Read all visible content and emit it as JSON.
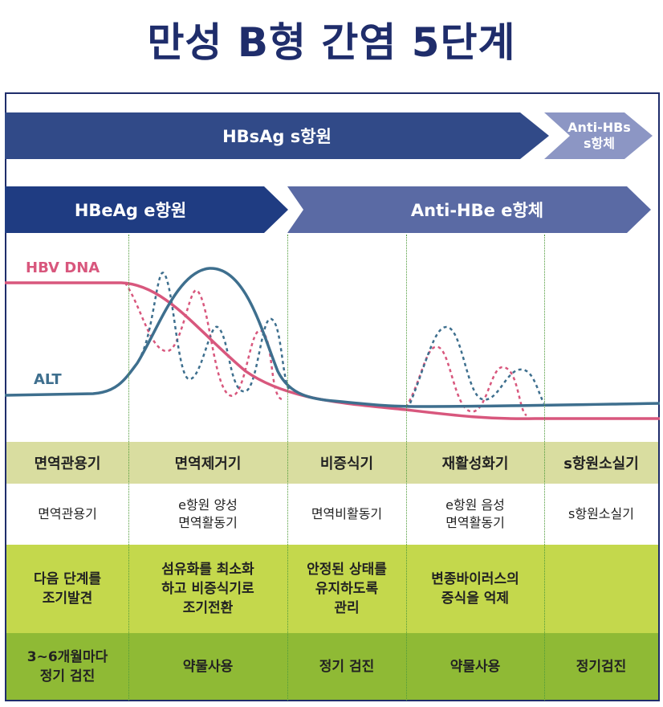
{
  "title": "만성 B형 간염 5단계",
  "banners": {
    "hbsag": "HBsAg  s항원",
    "anti_hbs_line1": "Anti-HBs",
    "anti_hbs_line2": "s항체",
    "hbeag": "HBeAg  e항원",
    "anti_hbe": "Anti-HBe  e항체"
  },
  "curve_labels": {
    "hbv_dna": "HBV DNA",
    "alt": "ALT"
  },
  "colors": {
    "navy": "#1f2d6b",
    "hbv_dna": "#d8577d",
    "alt": "#3e6f8e",
    "phase_row": "#d9dda0",
    "goal_row": "#c4d84c",
    "action_row": "#8fba35"
  },
  "phases": [
    "면역관용기",
    "면역제거기",
    "비증식기",
    "재활성화기",
    "s항원소실기"
  ],
  "descriptions": [
    "면역관용기",
    "e항원 양성\n면역활동기",
    "면역비활동기",
    "e항원 음성\n면역활동기",
    "s항원소실기"
  ],
  "goals": [
    "다음 단계를\n조기발견",
    "섬유화를 최소화\n하고 비증식기로\n조기전환",
    "안정된 상태를\n유지하도록\n관리",
    "변종바이러스의\n증식을 억제",
    ""
  ],
  "actions": [
    "3~6개월마다\n정기 검진",
    "약물사용",
    "정기 검진",
    "약물사용",
    "정기검진"
  ]
}
